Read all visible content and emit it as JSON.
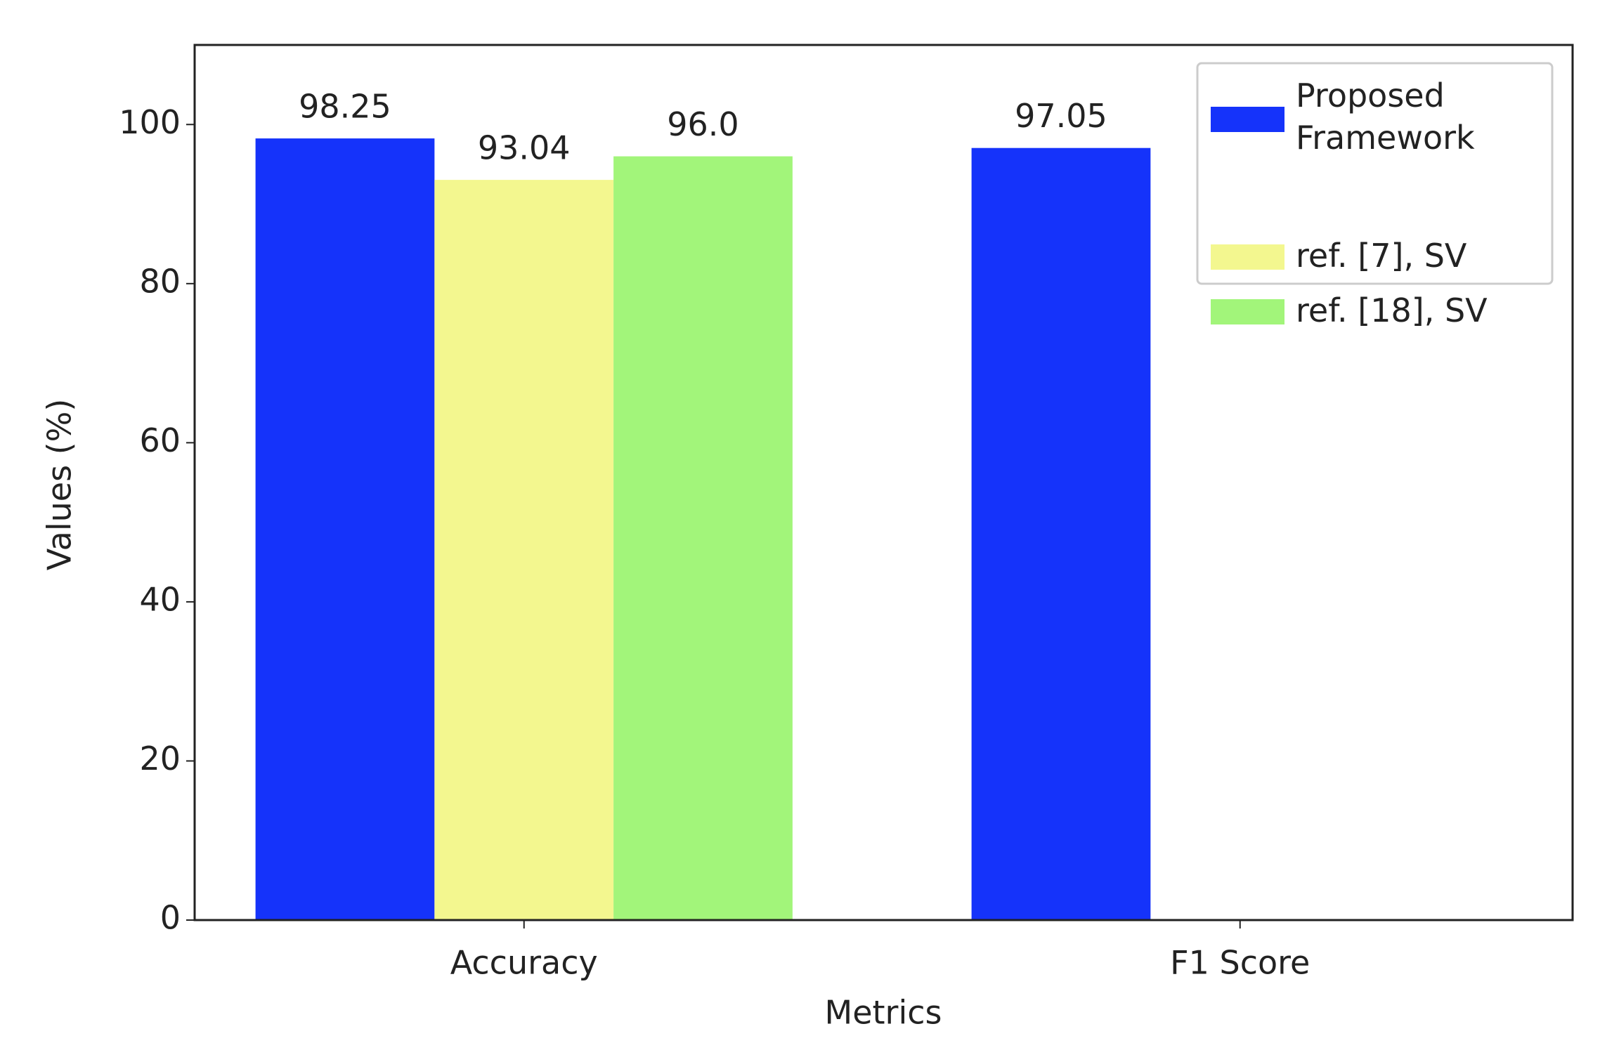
{
  "chart_data": {
    "type": "bar",
    "xlabel": "Metrics",
    "ylabel": "Values (%)",
    "categories": [
      "Accuracy",
      "F1 Score"
    ],
    "series": [
      {
        "name": "Proposed Framework",
        "color": "#1533fa",
        "values": [
          98.25,
          97.05
        ]
      },
      {
        "name": "ref. [7], SV",
        "color": "#f3f78f",
        "values": [
          93.04,
          null
        ]
      },
      {
        "name": "ref. [18], SV",
        "color": "#a2f57a",
        "values": [
          96.0,
          null
        ],
        "value_labels": [
          "96.0",
          null
        ]
      }
    ],
    "ylim": [
      0,
      110
    ],
    "yticks": [
      0,
      20,
      40,
      60,
      80,
      100
    ],
    "legend": "upper right",
    "grid": false
  }
}
